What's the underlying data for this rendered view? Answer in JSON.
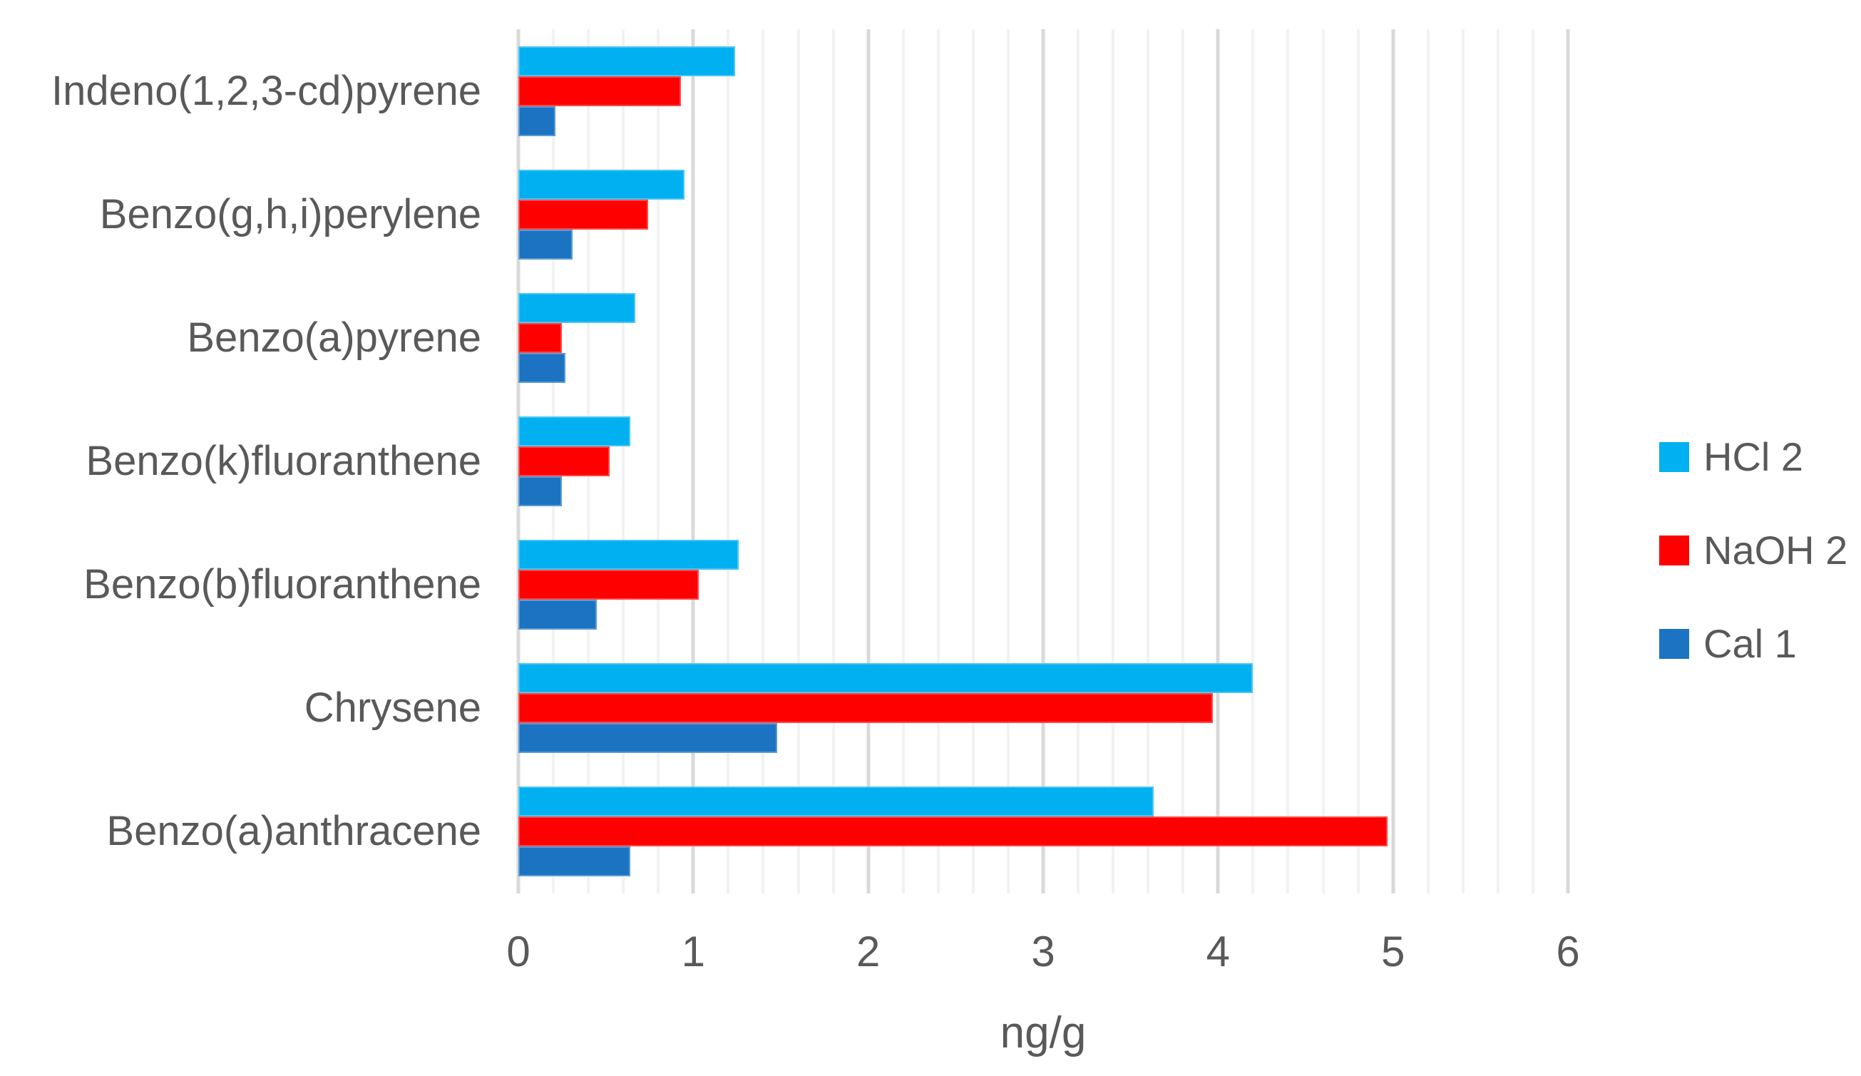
{
  "chart_data": {
    "type": "bar",
    "orientation": "horizontal",
    "title": "",
    "xlabel": "ng/g",
    "ylabel": "",
    "categories": [
      "Indeno(1,2,3-cd)pyrene",
      "Benzo(g,h,i)perylene",
      "Benzo(a)pyrene",
      "Benzo(k)fluoranthene",
      "Benzo(b)fluoranthene",
      "Chrysene",
      "Benzo(a)anthracene"
    ],
    "series": [
      {
        "name": "HCl 2",
        "color": "#00B0F0",
        "values": [
          1.24,
          0.95,
          0.67,
          0.64,
          1.26,
          4.2,
          3.63
        ]
      },
      {
        "name": "NaOH 2",
        "color": "#FF0000",
        "values": [
          0.93,
          0.74,
          0.25,
          0.52,
          1.03,
          3.97,
          4.97
        ]
      },
      {
        "name": "Cal 1",
        "color": "#1B73C2",
        "values": [
          0.21,
          0.31,
          0.27,
          0.25,
          0.45,
          1.48,
          0.64
        ]
      }
    ],
    "xlim": [
      0,
      6
    ],
    "x_ticks": [
      0,
      1,
      2,
      3,
      4,
      5,
      6
    ],
    "minor_grid_step": 0.2,
    "grid": true,
    "legend_position": "right"
  },
  "style": {
    "text_color": "#595959",
    "minor_grid_color": "#F2F2F2",
    "major_grid_color": "#D9D9D9",
    "background": "#FFFFFF"
  }
}
